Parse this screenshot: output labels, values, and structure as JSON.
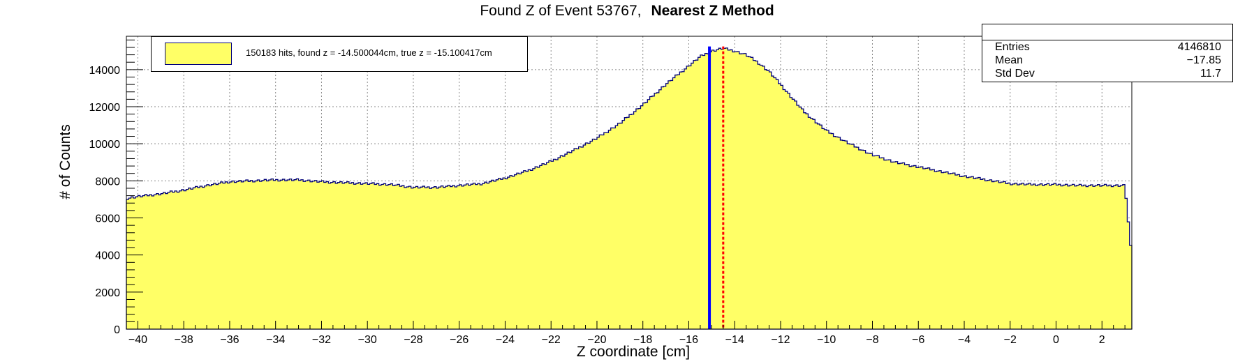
{
  "title": {
    "main": "Found Z of Event 53767,",
    "method": "Nearest Z Method"
  },
  "legend": {
    "text": "150183 hits, found z = -14.500044cm, true z = -15.100417cm",
    "fill_color": "#ffff66",
    "line_color": "#00007a"
  },
  "stats": {
    "rows": [
      {
        "label": "Entries",
        "value": "4146810"
      },
      {
        "label": "Mean",
        "value": "−17.85"
      },
      {
        "label": "Std Dev",
        "value": "11.7"
      }
    ]
  },
  "chart_data": {
    "type": "area",
    "title": "Found Z of Event 53767,   Nearest Z Method",
    "xlabel": "Z coordinate [cm]",
    "ylabel": "# of Counts",
    "xlim": [
      -40.5,
      3.3
    ],
    "ylim": [
      0,
      15800
    ],
    "grid": true,
    "x_ticks": [
      -40,
      -38,
      -36,
      -34,
      -32,
      -30,
      -28,
      -26,
      -24,
      -22,
      -20,
      -18,
      -16,
      -14,
      -12,
      -10,
      -8,
      -6,
      -4,
      -2,
      0,
      2
    ],
    "y_ticks": [
      0,
      2000,
      4000,
      6000,
      8000,
      10000,
      12000,
      14000
    ],
    "series": [
      {
        "fill_color": "#ffff66",
        "line_color": "#00007a",
        "x": [
          -40.5,
          -40,
          -39,
          -38,
          -37,
          -36,
          -35,
          -34,
          -33,
          -32,
          -31,
          -30,
          -29,
          -28,
          -27,
          -26,
          -25,
          -24,
          -23,
          -22,
          -21,
          -20,
          -19,
          -18,
          -17,
          -16.5,
          -16,
          -15.5,
          -15,
          -14.5,
          -14,
          -13.5,
          -13,
          -12.5,
          -12,
          -11,
          -10,
          -9,
          -8,
          -7,
          -6,
          -5,
          -4,
          -3,
          -2,
          -1,
          0,
          1,
          2,
          3,
          3.3
        ],
        "y": [
          7050,
          7150,
          7300,
          7500,
          7750,
          7950,
          8000,
          8050,
          8050,
          7950,
          7900,
          7850,
          7800,
          7650,
          7650,
          7750,
          7850,
          8150,
          8550,
          9050,
          9650,
          10300,
          11100,
          12100,
          13200,
          13700,
          14200,
          14700,
          15000,
          15150,
          15000,
          14800,
          14400,
          13900,
          13200,
          11750,
          10700,
          10000,
          9400,
          9000,
          8750,
          8500,
          8250,
          8050,
          7850,
          7800,
          7800,
          7750,
          7750,
          7750,
          3800
        ]
      }
    ],
    "vertical_lines": [
      {
        "x": -15.100417,
        "label": "true z",
        "color": "#0000ff",
        "style": "solid"
      },
      {
        "x": -14.500044,
        "label": "found z",
        "color": "#ff0000",
        "style": "dotted"
      }
    ]
  }
}
